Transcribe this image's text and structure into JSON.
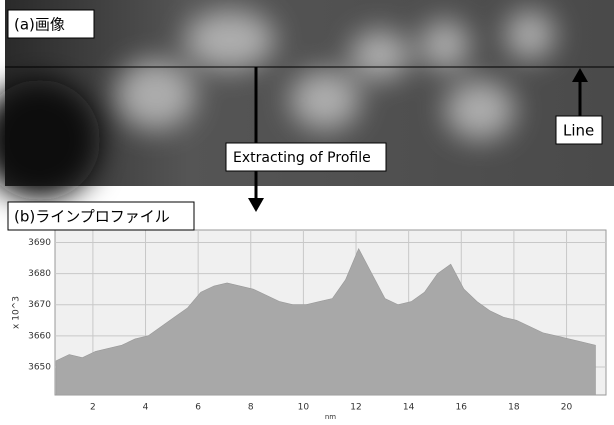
{
  "image": {
    "label": "(a)画像",
    "line_label": "Line",
    "arrow_label": "Extracting of Profile"
  },
  "chart_data": {
    "type": "area",
    "label": "(b)ラインプロファイル",
    "y_label": "x 10^3",
    "x_label": "nm",
    "x": [
      0.6,
      1.1,
      1.6,
      2.1,
      2.6,
      3.1,
      3.6,
      4.1,
      4.6,
      5.1,
      5.6,
      6.1,
      6.6,
      7.1,
      7.6,
      8.1,
      8.6,
      9.1,
      9.6,
      10.1,
      10.6,
      11.1,
      11.6,
      12.1,
      12.6,
      13.1,
      13.6,
      14.1,
      14.6,
      15.1,
      15.6,
      16.1,
      16.6,
      17.1,
      17.6,
      18.1,
      18.6,
      19.1,
      19.6,
      20.1,
      20.6,
      21.1
    ],
    "values": [
      3652,
      3654,
      3653,
      3655,
      3656,
      3657,
      3659,
      3660,
      3663,
      3666,
      3669,
      3674,
      3676,
      3677,
      3676,
      3675,
      3673,
      3671,
      3670,
      3670,
      3671,
      3672,
      3678,
      3688,
      3680,
      3672,
      3670,
      3671,
      3674,
      3680,
      3683,
      3675,
      3671,
      3668,
      3666,
      3665,
      3663,
      3661,
      3660,
      3659,
      3658,
      3657
    ],
    "color": "#a8a8a8",
    "xlim": [
      0.56,
      21.5
    ],
    "ylim": [
      3641,
      3694
    ],
    "xticks": [
      2,
      4,
      6,
      8,
      10,
      12,
      14,
      16,
      18,
      20
    ],
    "yticks": [
      3650,
      3660,
      3670,
      3680,
      3690
    ],
    "grid": true
  }
}
